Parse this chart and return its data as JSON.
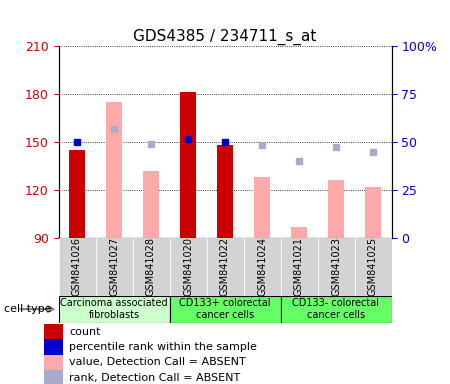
{
  "title": "GDS4385 / 234711_s_at",
  "samples": [
    "GSM841026",
    "GSM841027",
    "GSM841028",
    "GSM841020",
    "GSM841022",
    "GSM841024",
    "GSM841021",
    "GSM841023",
    "GSM841025"
  ],
  "ylim_left": [
    90,
    210
  ],
  "ylim_right": [
    0,
    100
  ],
  "yticks_left": [
    90,
    120,
    150,
    180,
    210
  ],
  "yticks_right": [
    0,
    25,
    50,
    75,
    100
  ],
  "yticklabels_right": [
    "0",
    "25",
    "50",
    "75",
    "100%"
  ],
  "red_bars": [
    145,
    null,
    null,
    181,
    148,
    null,
    null,
    null,
    null
  ],
  "pink_bars": [
    null,
    175,
    132,
    null,
    null,
    128,
    97,
    126,
    122
  ],
  "blue_squares": [
    150,
    null,
    null,
    152,
    150,
    null,
    null,
    null,
    null
  ],
  "light_blue_squares": [
    null,
    158,
    149,
    null,
    null,
    148,
    138,
    147,
    144
  ],
  "bar_width": 0.45,
  "bar_base": 90,
  "red_color": "#cc0000",
  "pink_color": "#ffaaaa",
  "blue_color": "#0000cc",
  "light_blue_color": "#aaaacc",
  "plot_bg": "#ffffff",
  "left_label_color": "#cc0000",
  "right_label_color": "#0000cc",
  "gray_cell_color": "#d3d3d3",
  "group_info": [
    {
      "label": "Carcinoma associated\nfibroblasts",
      "indices": [
        0,
        1,
        2
      ],
      "color": "#ccffcc"
    },
    {
      "label": "CD133+ colorectal\ncancer cells",
      "indices": [
        3,
        4,
        5
      ],
      "color": "#66ff66"
    },
    {
      "label": "CD133- colorectal\ncancer cells",
      "indices": [
        6,
        7,
        8
      ],
      "color": "#66ff66"
    }
  ],
  "legend_items": [
    {
      "color": "#cc0000",
      "label": "count"
    },
    {
      "color": "#0000cc",
      "label": "percentile rank within the sample"
    },
    {
      "color": "#ffaaaa",
      "label": "value, Detection Call = ABSENT"
    },
    {
      "color": "#aaaacc",
      "label": "rank, Detection Call = ABSENT"
    }
  ]
}
